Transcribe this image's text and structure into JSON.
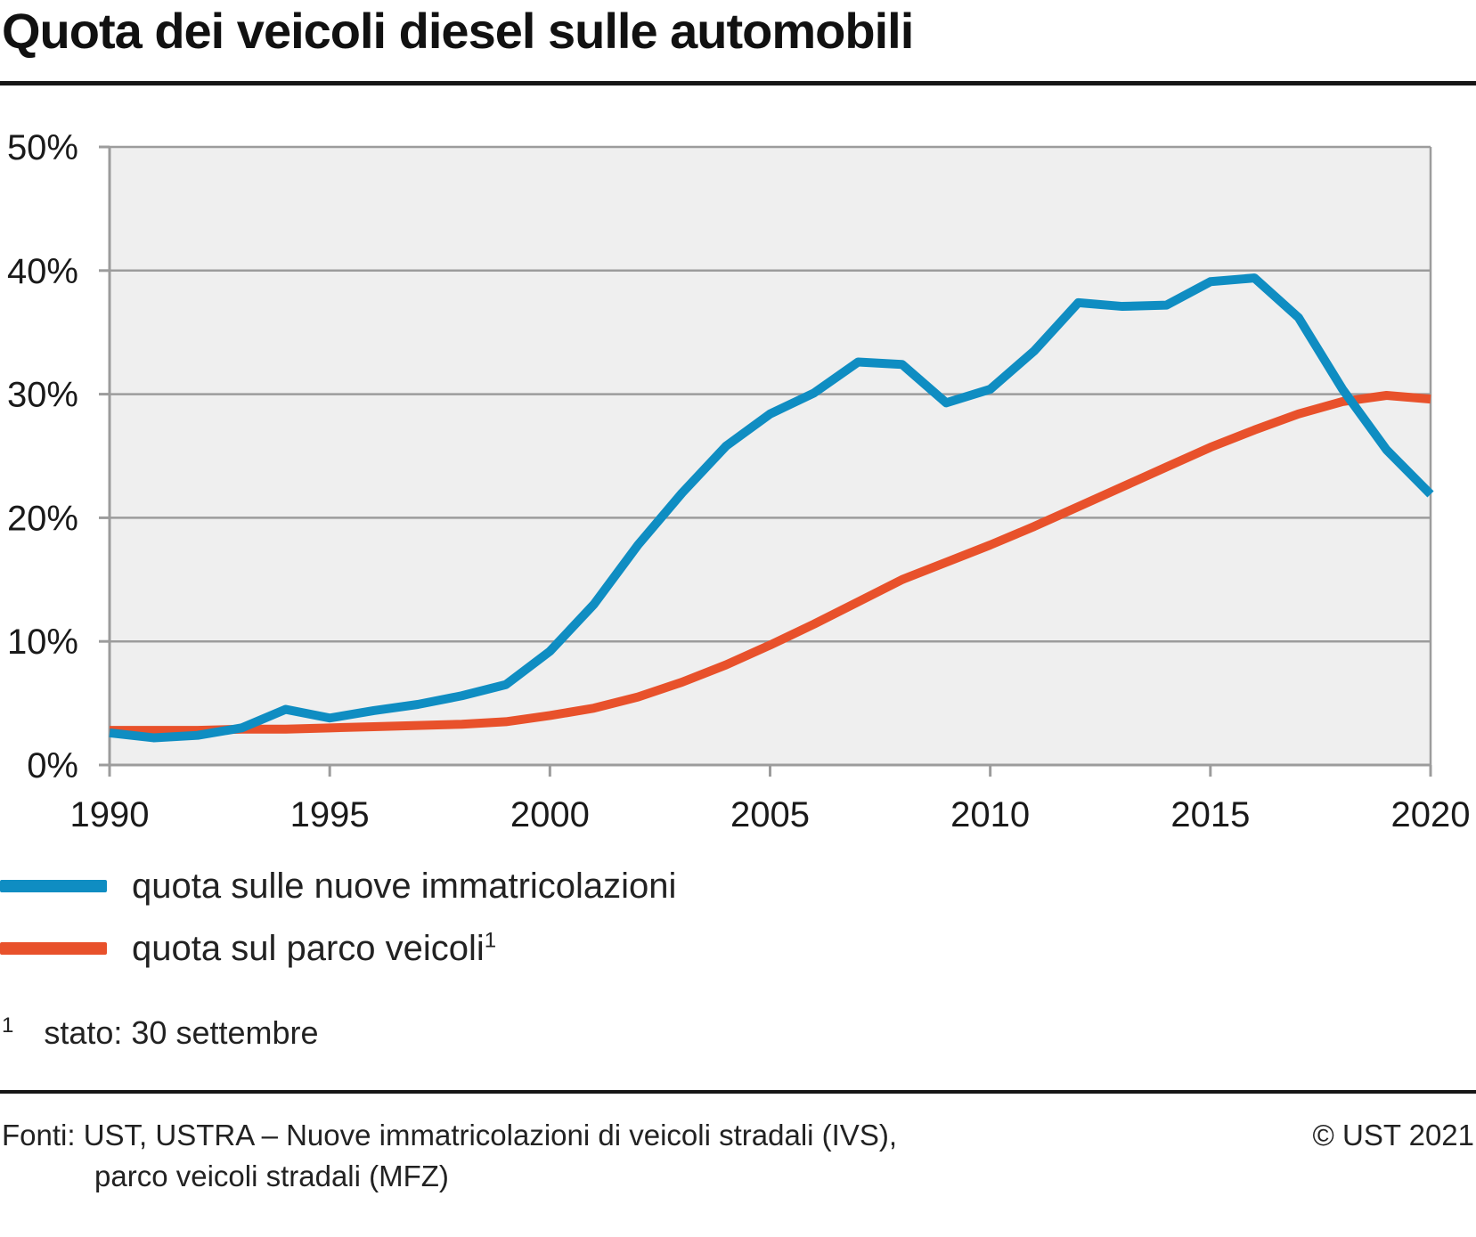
{
  "header": {
    "title": "Quota dei veicoli diesel sulle automobili"
  },
  "chart_data": {
    "type": "line",
    "title": "Quota dei veicoli diesel sulle automobili",
    "x": [
      1990,
      1991,
      1992,
      1993,
      1994,
      1995,
      1996,
      1997,
      1998,
      1999,
      2000,
      2001,
      2002,
      2003,
      2004,
      2005,
      2006,
      2007,
      2008,
      2009,
      2010,
      2011,
      2012,
      2013,
      2014,
      2015,
      2016,
      2017,
      2018,
      2019,
      2020
    ],
    "series": [
      {
        "name": "quota sulle nuove immatricolazioni",
        "color": "#0f8dc2",
        "values": [
          2.6,
          2.2,
          2.4,
          3.0,
          4.5,
          3.8,
          4.4,
          4.9,
          5.6,
          6.5,
          9.2,
          13.0,
          17.8,
          22.0,
          25.8,
          28.4,
          30.1,
          32.6,
          32.4,
          29.3,
          30.4,
          33.5,
          37.4,
          37.1,
          37.2,
          39.1,
          39.4,
          36.2,
          30.4,
          25.5,
          21.9
        ]
      },
      {
        "name": "quota sul parco veicoli",
        "sup": "1",
        "color": "#e8512b",
        "values": [
          2.8,
          2.8,
          2.8,
          2.9,
          2.9,
          3.0,
          3.1,
          3.2,
          3.3,
          3.5,
          4.0,
          4.6,
          5.5,
          6.7,
          8.1,
          9.7,
          11.4,
          13.2,
          15.0,
          16.4,
          17.8,
          19.3,
          20.9,
          22.5,
          24.1,
          25.7,
          27.1,
          28.4,
          29.4,
          29.9,
          29.6
        ]
      }
    ],
    "ylim": [
      0,
      50
    ],
    "ytick_step": 10,
    "ytick_suffix": "%",
    "xticks": [
      1990,
      1995,
      2000,
      2005,
      2010,
      2015,
      2020
    ],
    "grid": true,
    "legend_position": "bottom-left",
    "plot_bg": "#efefef",
    "grid_color": "#9c9c9c",
    "axis_color": "#9c9c9c",
    "label_color": "#1a1a1a"
  },
  "footnote": {
    "marker": "1",
    "text": "stato: 30 settembre"
  },
  "footer": {
    "source_line1": "Fonti: UST, USTRA – Nuove immatricolazioni di veicoli stradali (IVS),",
    "source_line2": "parco veicoli stradali (MFZ)",
    "copyright": "© UST 2021"
  }
}
